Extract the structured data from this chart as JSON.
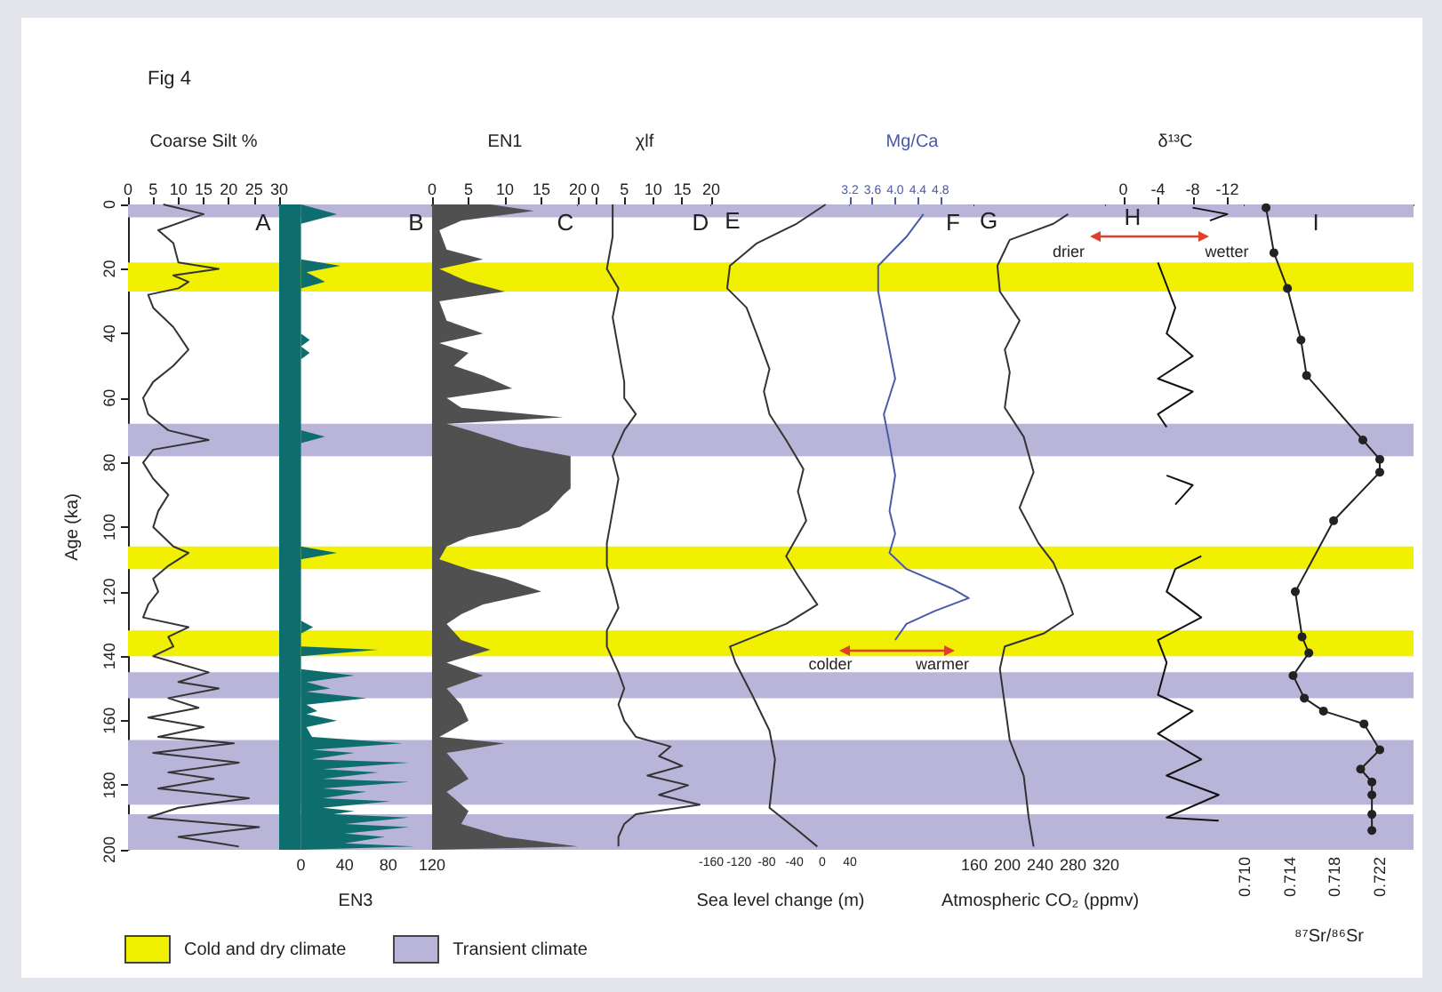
{
  "chart_data": [
    {
      "type": "line",
      "title": "Fig 4",
      "orientation": "horizontal",
      "xlabel": "Coarse Silt %",
      "ylabel": "Age (ka)",
      "xlim": [
        0,
        30
      ],
      "xticks": [
        0,
        5,
        10,
        15,
        20,
        25,
        30
      ],
      "ylim": [
        200,
        0
      ],
      "yticks": [
        0,
        20,
        40,
        60,
        80,
        100,
        120,
        140,
        160,
        180,
        200
      ],
      "annotations": [
        "A"
      ],
      "series": [
        {
          "color": "#333333",
          "x": [
            0,
            3,
            8,
            12,
            18,
            20,
            22,
            24,
            26,
            28,
            32,
            38,
            45,
            50,
            55,
            60,
            65,
            70,
            73,
            76,
            80,
            85,
            90,
            95,
            100,
            106,
            108,
            112,
            116,
            120,
            124,
            128,
            131,
            134,
            137,
            140,
            145,
            148,
            150,
            153,
            156,
            159,
            162,
            165,
            167,
            170,
            173,
            176,
            178,
            181,
            184,
            187,
            190,
            193,
            196,
            199
          ],
          "values": [
            7,
            15,
            6,
            9,
            10,
            18,
            9,
            12,
            10,
            4,
            5,
            9,
            12,
            9,
            5,
            3,
            4,
            8,
            16,
            5,
            3,
            5,
            8,
            6,
            5,
            9,
            12,
            8,
            5,
            6,
            4,
            3,
            12,
            8,
            9,
            5,
            16,
            10,
            18,
            8,
            14,
            4,
            15,
            6,
            21,
            5,
            22,
            8,
            17,
            6,
            24,
            10,
            4,
            26,
            10,
            22
          ]
        }
      ],
      "bands": [
        {
          "axis": "y",
          "from": 18,
          "to": 27,
          "color": "#f0f000"
        },
        {
          "axis": "y",
          "from": 106,
          "to": 113,
          "color": "#f0f000"
        },
        {
          "axis": "y",
          "from": 132,
          "to": 140,
          "color": "#f0f000"
        },
        {
          "axis": "y",
          "from": 0,
          "to": 4,
          "color": "#b9b5d9"
        },
        {
          "axis": "y",
          "from": 68,
          "to": 78,
          "color": "#b9b5d9"
        },
        {
          "axis": "y",
          "from": 145,
          "to": 153,
          "color": "#b9b5d9"
        },
        {
          "axis": "y",
          "from": 166,
          "to": 186,
          "color": "#b9b5d9"
        },
        {
          "axis": "y",
          "from": 189,
          "to": 200,
          "color": "#b9b5d9"
        }
      ]
    },
    {
      "type": "area",
      "orientation": "horizontal",
      "xlabel": "EN3",
      "xlim": [
        -20,
        120
      ],
      "xticks": [
        0,
        40,
        80,
        120
      ],
      "ylim": [
        200,
        0
      ],
      "yticks": [
        0,
        20,
        40,
        60,
        80,
        100,
        120,
        140,
        160,
        180,
        200
      ],
      "tick_labels": "x",
      "legend": "bottom",
      "annotations": [
        "B"
      ],
      "series": [
        {
          "color": "#0e6e6e",
          "x": [
            0,
            3,
            6,
            17,
            19,
            21,
            24,
            26,
            40,
            42,
            44,
            46,
            48,
            70,
            72,
            74,
            106,
            108,
            110,
            129,
            131,
            133,
            137,
            138,
            140,
            144,
            146,
            148,
            150,
            151,
            153,
            155,
            157,
            158,
            160,
            162,
            165,
            167,
            169,
            170,
            172,
            173,
            175,
            176,
            178,
            179,
            181,
            182,
            184,
            185,
            187,
            188,
            189,
            190,
            192,
            193,
            195,
            196,
            198,
            199,
            200
          ],
          "values": [
            0,
            33,
            0,
            0,
            36,
            5,
            22,
            0,
            0,
            8,
            0,
            8,
            0,
            0,
            22,
            0,
            0,
            33,
            0,
            0,
            11,
            0,
            0,
            71,
            0,
            0,
            49,
            5,
            27,
            5,
            60,
            5,
            15,
            5,
            33,
            5,
            10,
            93,
            10,
            49,
            10,
            99,
            20,
            71,
            20,
            99,
            20,
            60,
            20,
            82,
            20,
            49,
            30,
            99,
            40,
            99,
            40,
            77,
            40,
            104,
            0
          ]
        }
      ],
      "bands": [
        {
          "axis": "y",
          "from": 18,
          "to": 27,
          "color": "#f0f000",
          "label": "Cold and dry climate"
        },
        {
          "axis": "y",
          "from": 0,
          "to": 4,
          "color": "#b9b5d9",
          "label": "Transient climate"
        },
        {
          "axis": "y",
          "from": 106,
          "to": 113,
          "color": "#f0f000"
        },
        {
          "axis": "y",
          "from": 132,
          "to": 140,
          "color": "#f0f000"
        },
        {
          "axis": "y",
          "from": 68,
          "to": 78,
          "color": "#b9b5d9"
        },
        {
          "axis": "y",
          "from": 145,
          "to": 153,
          "color": "#b9b5d9"
        },
        {
          "axis": "y",
          "from": 166,
          "to": 186,
          "color": "#b9b5d9"
        },
        {
          "axis": "y",
          "from": 189,
          "to": 200,
          "color": "#b9b5d9"
        },
        {
          "axis": "x",
          "from": -20,
          "to": 0,
          "color": "#0e6e6e"
        }
      ]
    },
    {
      "type": "area",
      "orientation": "horizontal",
      "xlabel": "EN1",
      "xlim": [
        0,
        20
      ],
      "xticks": [
        0,
        5,
        10,
        15,
        20
      ],
      "ylim": [
        200,
        0
      ],
      "yticks": [
        0,
        20,
        40,
        60,
        80,
        100,
        120,
        140,
        160,
        180,
        200
      ],
      "tick_labels": "x",
      "annotations": [
        "C"
      ],
      "series": [
        {
          "color": "#505050",
          "x": [
            0,
            2,
            5,
            8,
            14,
            17,
            20,
            24,
            27,
            30,
            36,
            40,
            43,
            46,
            50,
            53,
            57,
            60,
            63,
            66,
            68,
            70,
            75,
            78,
            88,
            90,
            95,
            100,
            103,
            106,
            110,
            113,
            116,
            120,
            124,
            127,
            130,
            135,
            138,
            142,
            146,
            150,
            155,
            160,
            165,
            167,
            170,
            175,
            178,
            182,
            188,
            192,
            196,
            199,
            200
          ],
          "values": [
            8,
            14,
            4,
            1,
            2,
            7,
            1,
            5,
            10,
            1,
            2,
            7,
            1,
            5,
            3,
            7,
            11,
            2,
            4,
            18,
            2,
            5,
            12,
            19,
            19,
            18,
            16,
            12,
            5,
            2,
            1,
            5,
            10,
            15,
            7,
            4,
            2,
            4,
            8,
            2,
            7,
            2,
            4,
            5,
            1,
            10,
            2,
            4,
            5,
            2,
            5,
            4,
            10,
            20,
            0
          ]
        }
      ],
      "bands": [
        {
          "axis": "y",
          "from": 18,
          "to": 27,
          "color": "#f0f000"
        },
        {
          "axis": "y",
          "from": 106,
          "to": 113,
          "color": "#f0f000"
        },
        {
          "axis": "y",
          "from": 132,
          "to": 140,
          "color": "#f0f000"
        },
        {
          "axis": "y",
          "from": 0,
          "to": 4,
          "color": "#b9b5d9"
        },
        {
          "axis": "y",
          "from": 68,
          "to": 78,
          "color": "#b9b5d9"
        },
        {
          "axis": "y",
          "from": 145,
          "to": 153,
          "color": "#b9b5d9"
        },
        {
          "axis": "y",
          "from": 166,
          "to": 186,
          "color": "#b9b5d9"
        },
        {
          "axis": "y",
          "from": 189,
          "to": 200,
          "color": "#b9b5d9"
        }
      ]
    },
    {
      "type": "line",
      "orientation": "horizontal",
      "xlabel": "χlf",
      "xlim": [
        -3,
        20
      ],
      "xticks": [
        0,
        5,
        10,
        15,
        20
      ],
      "ylim": [
        200,
        0
      ],
      "yticks": [
        0,
        20,
        40,
        60,
        80,
        100,
        120,
        140,
        160,
        180,
        200
      ],
      "tick_labels": "x",
      "annotations": [
        "D"
      ],
      "series": [
        {
          "color": "#333333",
          "x": [
            0,
            10,
            20,
            26,
            35,
            45,
            55,
            60,
            65,
            70,
            78,
            85,
            95,
            105,
            112,
            118,
            125,
            132,
            137,
            145,
            150,
            155,
            160,
            165,
            168,
            171,
            174,
            177,
            180,
            183,
            186,
            189,
            192,
            196,
            199
          ],
          "values": [
            3,
            3,
            2,
            4,
            3,
            4,
            5,
            5,
            7,
            5,
            3,
            4,
            3,
            2,
            2,
            3,
            4,
            2,
            2,
            4,
            5,
            4,
            5,
            7,
            13,
            11,
            15,
            9,
            16,
            11,
            18,
            7,
            5,
            4,
            4
          ]
        }
      ],
      "bands": [
        {
          "axis": "y",
          "from": 18,
          "to": 27,
          "color": "#f0f000"
        },
        {
          "axis": "y",
          "from": 106,
          "to": 113,
          "color": "#f0f000"
        },
        {
          "axis": "y",
          "from": 132,
          "to": 140,
          "color": "#f0f000"
        },
        {
          "axis": "y",
          "from": 0,
          "to": 4,
          "color": "#b9b5d9"
        },
        {
          "axis": "y",
          "from": 68,
          "to": 78,
          "color": "#b9b5d9"
        },
        {
          "axis": "y",
          "from": 145,
          "to": 153,
          "color": "#b9b5d9"
        },
        {
          "axis": "y",
          "from": 166,
          "to": 186,
          "color": "#b9b5d9"
        },
        {
          "axis": "y",
          "from": 189,
          "to": 200,
          "color": "#b9b5d9"
        }
      ]
    },
    {
      "type": "line",
      "orientation": "horizontal",
      "xlabel": "Sea level change (m)",
      "xlim": [
        -160,
        40
      ],
      "xticks": [
        -160,
        -120,
        -80,
        -40,
        0,
        40
      ],
      "ylim": [
        200,
        0
      ],
      "yticks": [
        0,
        20,
        40,
        60,
        80,
        100,
        120,
        140,
        160,
        180,
        200
      ],
      "tick_labels": "x",
      "annotations": [
        "E"
      ],
      "series": [
        {
          "color": "#333333",
          "x": [
            0,
            6,
            12,
            19,
            26,
            32,
            41,
            51,
            58,
            65,
            73,
            82,
            89,
            98,
            109,
            115,
            124,
            130,
            137,
            142,
            152,
            163,
            172,
            187,
            194,
            199
          ],
          "values": [
            5,
            -37,
            -94,
            -133,
            -137,
            -109,
            -93,
            -76,
            -84,
            -76,
            -52,
            -27,
            -35,
            -23,
            -52,
            -35,
            -7,
            -52,
            -133,
            -125,
            -101,
            -76,
            -68,
            -76,
            -35,
            -7
          ]
        }
      ],
      "bands": [
        {
          "axis": "y",
          "from": 18,
          "to": 27,
          "color": "#f0f000"
        },
        {
          "axis": "y",
          "from": 106,
          "to": 113,
          "color": "#f0f000"
        },
        {
          "axis": "y",
          "from": 132,
          "to": 140,
          "color": "#f0f000"
        },
        {
          "axis": "y",
          "from": 0,
          "to": 4,
          "color": "#b9b5d9"
        },
        {
          "axis": "y",
          "from": 68,
          "to": 78,
          "color": "#b9b5d9"
        },
        {
          "axis": "y",
          "from": 145,
          "to": 153,
          "color": "#b9b5d9"
        },
        {
          "axis": "y",
          "from": 166,
          "to": 186,
          "color": "#b9b5d9"
        },
        {
          "axis": "y",
          "from": 189,
          "to": 200,
          "color": "#b9b5d9"
        }
      ]
    },
    {
      "type": "line",
      "orientation": "horizontal",
      "xlabel": "Mg/Ca",
      "xlim": [
        3.2,
        5.4
      ],
      "xticks": [
        3.2,
        3.6,
        {
          "value": 4,
          "label": "4.0"
        },
        4.4,
        4.8
      ],
      "ylim": [
        200,
        0
      ],
      "yticks": [
        0,
        20,
        40,
        60,
        80,
        100,
        120,
        140,
        160,
        180,
        200
      ],
      "tick_labels": "x",
      "annotations": [
        "F",
        "colder",
        "warmer"
      ],
      "series": [
        {
          "color": "#4a5aa8",
          "x": [
            3,
            10,
            19,
            27,
            36,
            45,
            54,
            65,
            74,
            84,
            95,
            102,
            108,
            113,
            119,
            122,
            126,
            130,
            135
          ],
          "values": [
            4.5,
            4.2,
            3.7,
            3.7,
            3.8,
            3.9,
            4.0,
            3.8,
            3.9,
            4.0,
            3.9,
            4.0,
            3.9,
            4.2,
            5.0,
            5.3,
            4.7,
            4.2,
            4.0
          ]
        }
      ],
      "bands": [
        {
          "axis": "y",
          "from": 18,
          "to": 27,
          "color": "#f0f000"
        },
        {
          "axis": "y",
          "from": 106,
          "to": 113,
          "color": "#f0f000"
        },
        {
          "axis": "y",
          "from": 132,
          "to": 140,
          "color": "#f0f000"
        },
        {
          "axis": "y",
          "from": 0,
          "to": 4,
          "color": "#b9b5d9"
        },
        {
          "axis": "y",
          "from": 68,
          "to": 78,
          "color": "#b9b5d9"
        },
        {
          "axis": "y",
          "from": 145,
          "to": 153,
          "color": "#b9b5d9"
        },
        {
          "axis": "y",
          "from": 166,
          "to": 186,
          "color": "#b9b5d9"
        },
        {
          "axis": "y",
          "from": 189,
          "to": 200,
          "color": "#b9b5d9"
        }
      ]
    },
    {
      "type": "line",
      "orientation": "horizontal",
      "xlabel": "Atmospheric CO₂ (ppmv)",
      "xlim": [
        160,
        320
      ],
      "xticks": [
        160,
        200,
        240,
        280,
        320
      ],
      "ylim": [
        200,
        0
      ],
      "yticks": [
        0,
        20,
        40,
        60,
        80,
        100,
        120,
        140,
        160,
        180,
        200
      ],
      "tick_labels": "x",
      "annotations": [
        "G"
      ],
      "series": [
        {
          "color": "#333333",
          "x": [
            3,
            6,
            11,
            19,
            27,
            36,
            45,
            52,
            63,
            72,
            83,
            94,
            105,
            111,
            118,
            127,
            133,
            137,
            144,
            155,
            166,
            177,
            190,
            199
          ],
          "values": [
            274,
            256,
            203,
            188,
            191,
            215,
            197,
            203,
            197,
            220,
            232,
            215,
            238,
            256,
            268,
            280,
            244,
            197,
            191,
            197,
            203,
            220,
            226,
            232
          ]
        }
      ],
      "bands": [
        {
          "axis": "y",
          "from": 18,
          "to": 27,
          "color": "#f0f000"
        },
        {
          "axis": "y",
          "from": 106,
          "to": 113,
          "color": "#f0f000"
        },
        {
          "axis": "y",
          "from": 132,
          "to": 140,
          "color": "#f0f000"
        },
        {
          "axis": "y",
          "from": 0,
          "to": 4,
          "color": "#b9b5d9"
        },
        {
          "axis": "y",
          "from": 68,
          "to": 78,
          "color": "#b9b5d9"
        },
        {
          "axis": "y",
          "from": 145,
          "to": 153,
          "color": "#b9b5d9"
        },
        {
          "axis": "y",
          "from": 166,
          "to": 186,
          "color": "#b9b5d9"
        },
        {
          "axis": "y",
          "from": 189,
          "to": 200,
          "color": "#b9b5d9"
        }
      ]
    },
    {
      "type": "line",
      "orientation": "horizontal",
      "xlabel": "δ¹³C",
      "xlim": [
        2,
        -14
      ],
      "xticks": [
        0,
        -4,
        -8,
        -12
      ],
      "ylim": [
        200,
        0
      ],
      "yticks": [
        0,
        20,
        40,
        60,
        80,
        100,
        120,
        140,
        160,
        180,
        200
      ],
      "tick_labels": "x",
      "annotations": [
        "H",
        "drier",
        "wetter"
      ],
      "series": [
        {
          "color": "#111111",
          "x": [
            1,
            3,
            5,
            8,
            18,
            25,
            32,
            40,
            47,
            54,
            58,
            65,
            69,
            76,
            84,
            87,
            93,
            100,
            109,
            113,
            120,
            128,
            135,
            142,
            152,
            157,
            164,
            172,
            177,
            183,
            190,
            191
          ],
          "values": [
            -8,
            -12,
            -10,
            null,
            -4,
            -5,
            -6,
            -5,
            -8,
            -4,
            -8,
            -4,
            -5,
            null,
            -5,
            -8,
            -6,
            null,
            -9,
            -6,
            -5,
            -9,
            -4,
            -5,
            -4,
            -8,
            -4,
            -9,
            -5,
            -11,
            -5,
            -11
          ]
        }
      ],
      "bands": [
        {
          "axis": "y",
          "from": 18,
          "to": 27,
          "color": "#f0f000"
        },
        {
          "axis": "y",
          "from": 106,
          "to": 113,
          "color": "#f0f000"
        },
        {
          "axis": "y",
          "from": 132,
          "to": 140,
          "color": "#f0f000"
        },
        {
          "axis": "y",
          "from": 0,
          "to": 4,
          "color": "#b9b5d9"
        },
        {
          "axis": "y",
          "from": 68,
          "to": 78,
          "color": "#b9b5d9"
        },
        {
          "axis": "y",
          "from": 145,
          "to": 153,
          "color": "#b9b5d9"
        },
        {
          "axis": "y",
          "from": 166,
          "to": 186,
          "color": "#b9b5d9"
        },
        {
          "axis": "y",
          "from": 189,
          "to": 200,
          "color": "#b9b5d9"
        }
      ]
    },
    {
      "type": "line",
      "orientation": "horizontal",
      "marker": "circle",
      "xlabel": "⁸⁷Sr/⁸⁶Sr",
      "xlim": [
        0.71,
        0.725
      ],
      "xticks": [
        {
          "value": 0.71,
          "label": "0.710"
        },
        0.714,
        0.718,
        0.722
      ],
      "ylim": [
        200,
        0
      ],
      "yticks": [
        0,
        20,
        40,
        60,
        80,
        100,
        120,
        140,
        160,
        180,
        200
      ],
      "tick_labels": "x",
      "annotations": [
        "I"
      ],
      "series": [
        {
          "color": "#222222",
          "x": [
            1,
            15,
            26,
            42,
            53,
            73,
            79,
            83,
            98,
            120,
            134,
            139,
            146,
            153,
            157,
            161,
            169,
            175,
            179,
            183,
            189,
            194
          ],
          "values": [
            0.7119,
            0.7126,
            0.7138,
            0.715,
            0.7155,
            0.7205,
            0.722,
            0.722,
            0.7179,
            0.7145,
            0.7151,
            0.7157,
            0.7143,
            0.7153,
            0.717,
            0.7206,
            0.722,
            0.7203,
            0.7213,
            0.7213,
            0.7213,
            0.7213
          ]
        }
      ],
      "bands": [
        {
          "axis": "y",
          "from": 18,
          "to": 27,
          "color": "#f0f000"
        },
        {
          "axis": "y",
          "from": 106,
          "to": 113,
          "color": "#f0f000"
        },
        {
          "axis": "y",
          "from": 132,
          "to": 140,
          "color": "#f0f000"
        },
        {
          "axis": "y",
          "from": 0,
          "to": 4,
          "color": "#b9b5d9"
        },
        {
          "axis": "y",
          "from": 68,
          "to": 78,
          "color": "#b9b5d9"
        },
        {
          "axis": "y",
          "from": 145,
          "to": 153,
          "color": "#b9b5d9"
        },
        {
          "axis": "y",
          "from": 166,
          "to": 186,
          "color": "#b9b5d9"
        },
        {
          "axis": "y",
          "from": 189,
          "to": 200,
          "color": "#b9b5d9"
        }
      ]
    }
  ]
}
